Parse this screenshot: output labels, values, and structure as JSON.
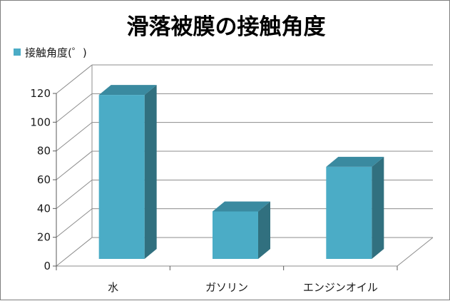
{
  "chart_data": {
    "type": "bar",
    "title": "滑落被膜の接触角度",
    "categories": [
      "水",
      "ガソリン",
      "エンジンオイル"
    ],
    "series": [
      {
        "name": "接触角度(゜)",
        "values": [
          114,
          33,
          64
        ]
      }
    ],
    "ylim": [
      0,
      120
    ],
    "yticks": [
      0,
      20,
      40,
      60,
      80,
      100,
      120
    ],
    "grid": true,
    "legend_position": "top-left",
    "style": "3d-column",
    "colors": {
      "bar_front": "#4bacc6",
      "bar_top": "#3a8aa0",
      "bar_side": "#31707f",
      "gridline": "#8c8c8c",
      "axis": "#5a5a5a"
    }
  }
}
